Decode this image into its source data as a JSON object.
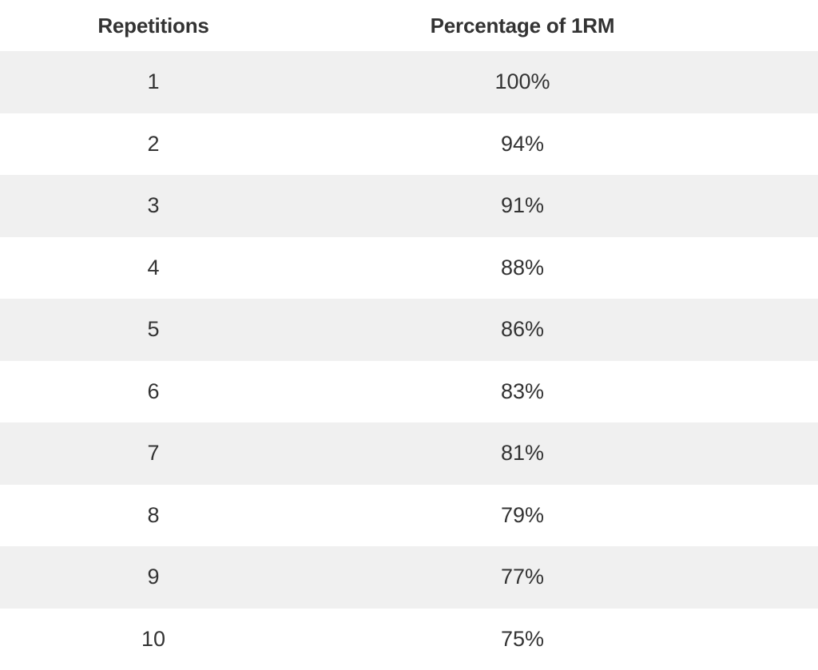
{
  "table": {
    "headers": {
      "repetitions": "Repetitions",
      "percentage": "Percentage of 1RM"
    },
    "rows": [
      {
        "reps": "1",
        "pct": "100%"
      },
      {
        "reps": "2",
        "pct": "94%"
      },
      {
        "reps": "3",
        "pct": "91%"
      },
      {
        "reps": "4",
        "pct": "88%"
      },
      {
        "reps": "5",
        "pct": "86%"
      },
      {
        "reps": "6",
        "pct": "83%"
      },
      {
        "reps": "7",
        "pct": "81%"
      },
      {
        "reps": "8",
        "pct": "79%"
      },
      {
        "reps": "9",
        "pct": "77%"
      },
      {
        "reps": "10",
        "pct": "75%"
      }
    ]
  },
  "colors": {
    "text": "#333333",
    "row_shade": "#f0f0f0",
    "background": "#ffffff"
  }
}
